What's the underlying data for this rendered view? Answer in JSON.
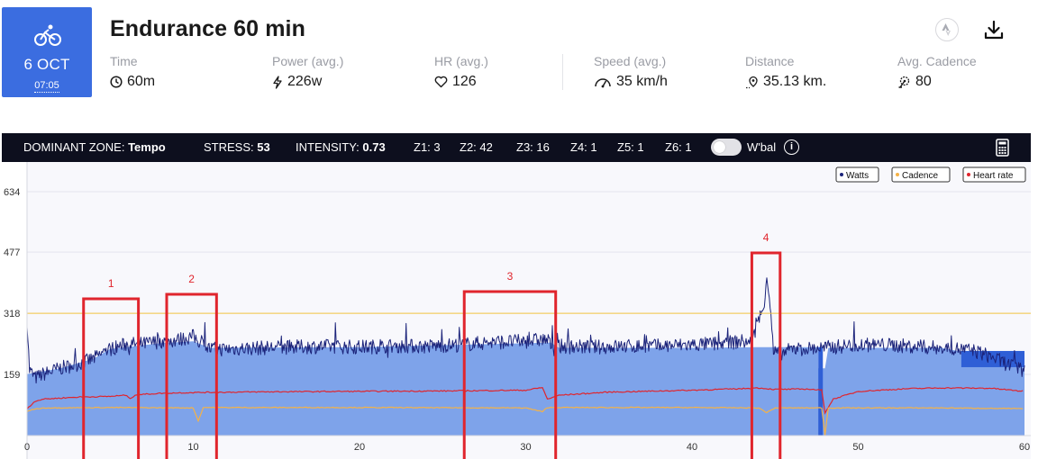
{
  "header": {
    "date": "6 OCT",
    "time": "07:05",
    "title": "Endurance 60 min",
    "metrics": [
      {
        "label": "Time",
        "value": "60m",
        "icon": "clock-icon"
      },
      {
        "label": "Power (avg.)",
        "value": "226w",
        "icon": "bolt-icon"
      },
      {
        "label": "HR (avg.)",
        "value": "126",
        "icon": "heart-icon"
      },
      {
        "label": "Speed (avg.)",
        "value": "35 km/h",
        "icon": "speedometer-icon"
      },
      {
        "label": "Distance",
        "value": "35.13 km.",
        "icon": "location-pin-icon"
      },
      {
        "label": "Avg. Cadence",
        "value": "80",
        "icon": "crank-icon"
      }
    ]
  },
  "statbar": {
    "dominant_label": "DOMINANT ZONE:",
    "dominant_value": "Tempo",
    "stress_label": "STRESS:",
    "stress_value": "53",
    "intensity_label": "INTENSITY:",
    "intensity_value": "0.73",
    "z1": "Z1: 3",
    "z2": "Z2: 42",
    "z3": "Z3: 16",
    "z4": "Z4: 1",
    "z5": "Z5: 1",
    "z6": "Z6: 1",
    "wbal_label": "W'bal",
    "wbal_on": false
  },
  "colors": {
    "brand": "#3b6de0",
    "watts": "#1b237a",
    "watts_fill": "#7ea3ea",
    "watts_fill_dark": "#2f5fd6",
    "cadence": "#f5b246",
    "heart_rate": "#e0252d",
    "threshold": "#f5c542",
    "annotation": "#e0252d"
  },
  "chart_data": {
    "type": "line",
    "x_ticks": [
      0,
      10,
      20,
      30,
      40,
      50,
      60
    ],
    "y_ticks": [
      159,
      318,
      477,
      634
    ],
    "xlim": [
      0,
      60
    ],
    "ylim": [
      0,
      634
    ],
    "grid": true,
    "legend_position": "top-right",
    "legend": [
      {
        "name": "Watts",
        "color": "#1b237a"
      },
      {
        "name": "Cadence",
        "color": "#f5b246"
      },
      {
        "name": "Heart rate",
        "color": "#e0252d"
      }
    ],
    "threshold": 318,
    "series": [
      {
        "name": "Watts",
        "points": [
          [
            0,
            300
          ],
          [
            0.15,
            170
          ],
          [
            0.5,
            150
          ],
          [
            1,
            160
          ],
          [
            2,
            175
          ],
          [
            3,
            185
          ],
          [
            4,
            200
          ],
          [
            5,
            225
          ],
          [
            6,
            238
          ],
          [
            7,
            238
          ],
          [
            8,
            245
          ],
          [
            9,
            248
          ],
          [
            10,
            258
          ],
          [
            10.5,
            240
          ],
          [
            11,
            225
          ],
          [
            12,
            225
          ],
          [
            14,
            228
          ],
          [
            16,
            230
          ],
          [
            18,
            232
          ],
          [
            20,
            230
          ],
          [
            22,
            233
          ],
          [
            24,
            232
          ],
          [
            26,
            236
          ],
          [
            28,
            243
          ],
          [
            30,
            245
          ],
          [
            31,
            250
          ],
          [
            31.3,
            248
          ],
          [
            31.7,
            225
          ],
          [
            32,
            232
          ],
          [
            34,
            230
          ],
          [
            36,
            232
          ],
          [
            38,
            233
          ],
          [
            40,
            236
          ],
          [
            42,
            240
          ],
          [
            43,
            245
          ],
          [
            43.6,
            240
          ],
          [
            44,
            300
          ],
          [
            44.3,
            330
          ],
          [
            44.5,
            420
          ],
          [
            44.7,
            340
          ],
          [
            44.9,
            215
          ],
          [
            45.5,
            215
          ],
          [
            46,
            225
          ],
          [
            47,
            226
          ],
          [
            48,
            228
          ],
          [
            49,
            232
          ],
          [
            50,
            236
          ],
          [
            52,
            235
          ],
          [
            54,
            230
          ],
          [
            56,
            225
          ],
          [
            57,
            220
          ],
          [
            58,
            205
          ],
          [
            59,
            185
          ],
          [
            60,
            170
          ]
        ]
      },
      {
        "name": "Cadence",
        "points": [
          [
            0,
            62
          ],
          [
            0.3,
            68
          ],
          [
            1,
            72
          ],
          [
            5,
            73
          ],
          [
            10,
            72
          ],
          [
            10.3,
            38
          ],
          [
            10.6,
            73
          ],
          [
            20,
            73
          ],
          [
            30,
            72
          ],
          [
            31,
            62
          ],
          [
            31.3,
            73
          ],
          [
            40,
            73
          ],
          [
            44,
            72
          ],
          [
            44.5,
            60
          ],
          [
            45,
            72
          ],
          [
            47.8,
            72
          ],
          [
            48,
            2
          ],
          [
            48.2,
            72
          ],
          [
            50,
            72
          ],
          [
            55,
            72
          ],
          [
            60,
            70
          ]
        ]
      },
      {
        "name": "Heart rate",
        "points": [
          [
            0,
            70
          ],
          [
            0.5,
            90
          ],
          [
            1,
            95
          ],
          [
            3,
            100
          ],
          [
            5,
            102
          ],
          [
            6,
            105
          ],
          [
            6.2,
            95
          ],
          [
            6.5,
            106
          ],
          [
            8,
            110
          ],
          [
            10,
            112
          ],
          [
            15,
            114
          ],
          [
            20,
            115
          ],
          [
            25,
            116
          ],
          [
            30,
            118
          ],
          [
            31,
            125
          ],
          [
            31.3,
            95
          ],
          [
            32,
            105
          ],
          [
            35,
            113
          ],
          [
            40,
            118
          ],
          [
            43,
            122
          ],
          [
            44,
            124
          ],
          [
            45,
            120
          ],
          [
            47,
            121
          ],
          [
            47.8,
            118
          ],
          [
            48,
            60
          ],
          [
            48.5,
            95
          ],
          [
            50,
            115
          ],
          [
            53,
            122
          ],
          [
            55,
            124
          ],
          [
            58,
            123
          ],
          [
            60,
            115
          ]
        ]
      },
      {
        "name": "Power zone fill",
        "points": [
          [
            0,
            160
          ],
          [
            2,
            175
          ],
          [
            4,
            200
          ],
          [
            5,
            225
          ],
          [
            8,
            240
          ],
          [
            10,
            245
          ],
          [
            11,
            228
          ],
          [
            20,
            230
          ],
          [
            26,
            236
          ],
          [
            30,
            240
          ],
          [
            31.5,
            242
          ],
          [
            32,
            228
          ],
          [
            40,
            228
          ],
          [
            44,
            230
          ],
          [
            47.6,
            230
          ],
          [
            47.6,
            175
          ],
          [
            48,
            175
          ],
          [
            48.2,
            228
          ],
          [
            55,
            228
          ],
          [
            56,
            220
          ],
          [
            56.1,
            220
          ],
          [
            60,
            220
          ]
        ]
      }
    ],
    "annotations": [
      {
        "label": "1",
        "x_start": 3.4,
        "x_end": 6.7
      },
      {
        "label": "2",
        "x_start": 8.4,
        "x_end": 11.4
      },
      {
        "label": "3",
        "x_start": 26.3,
        "x_end": 31.8
      },
      {
        "label": "4",
        "x_start": 43.6,
        "x_end": 45.3
      }
    ]
  }
}
